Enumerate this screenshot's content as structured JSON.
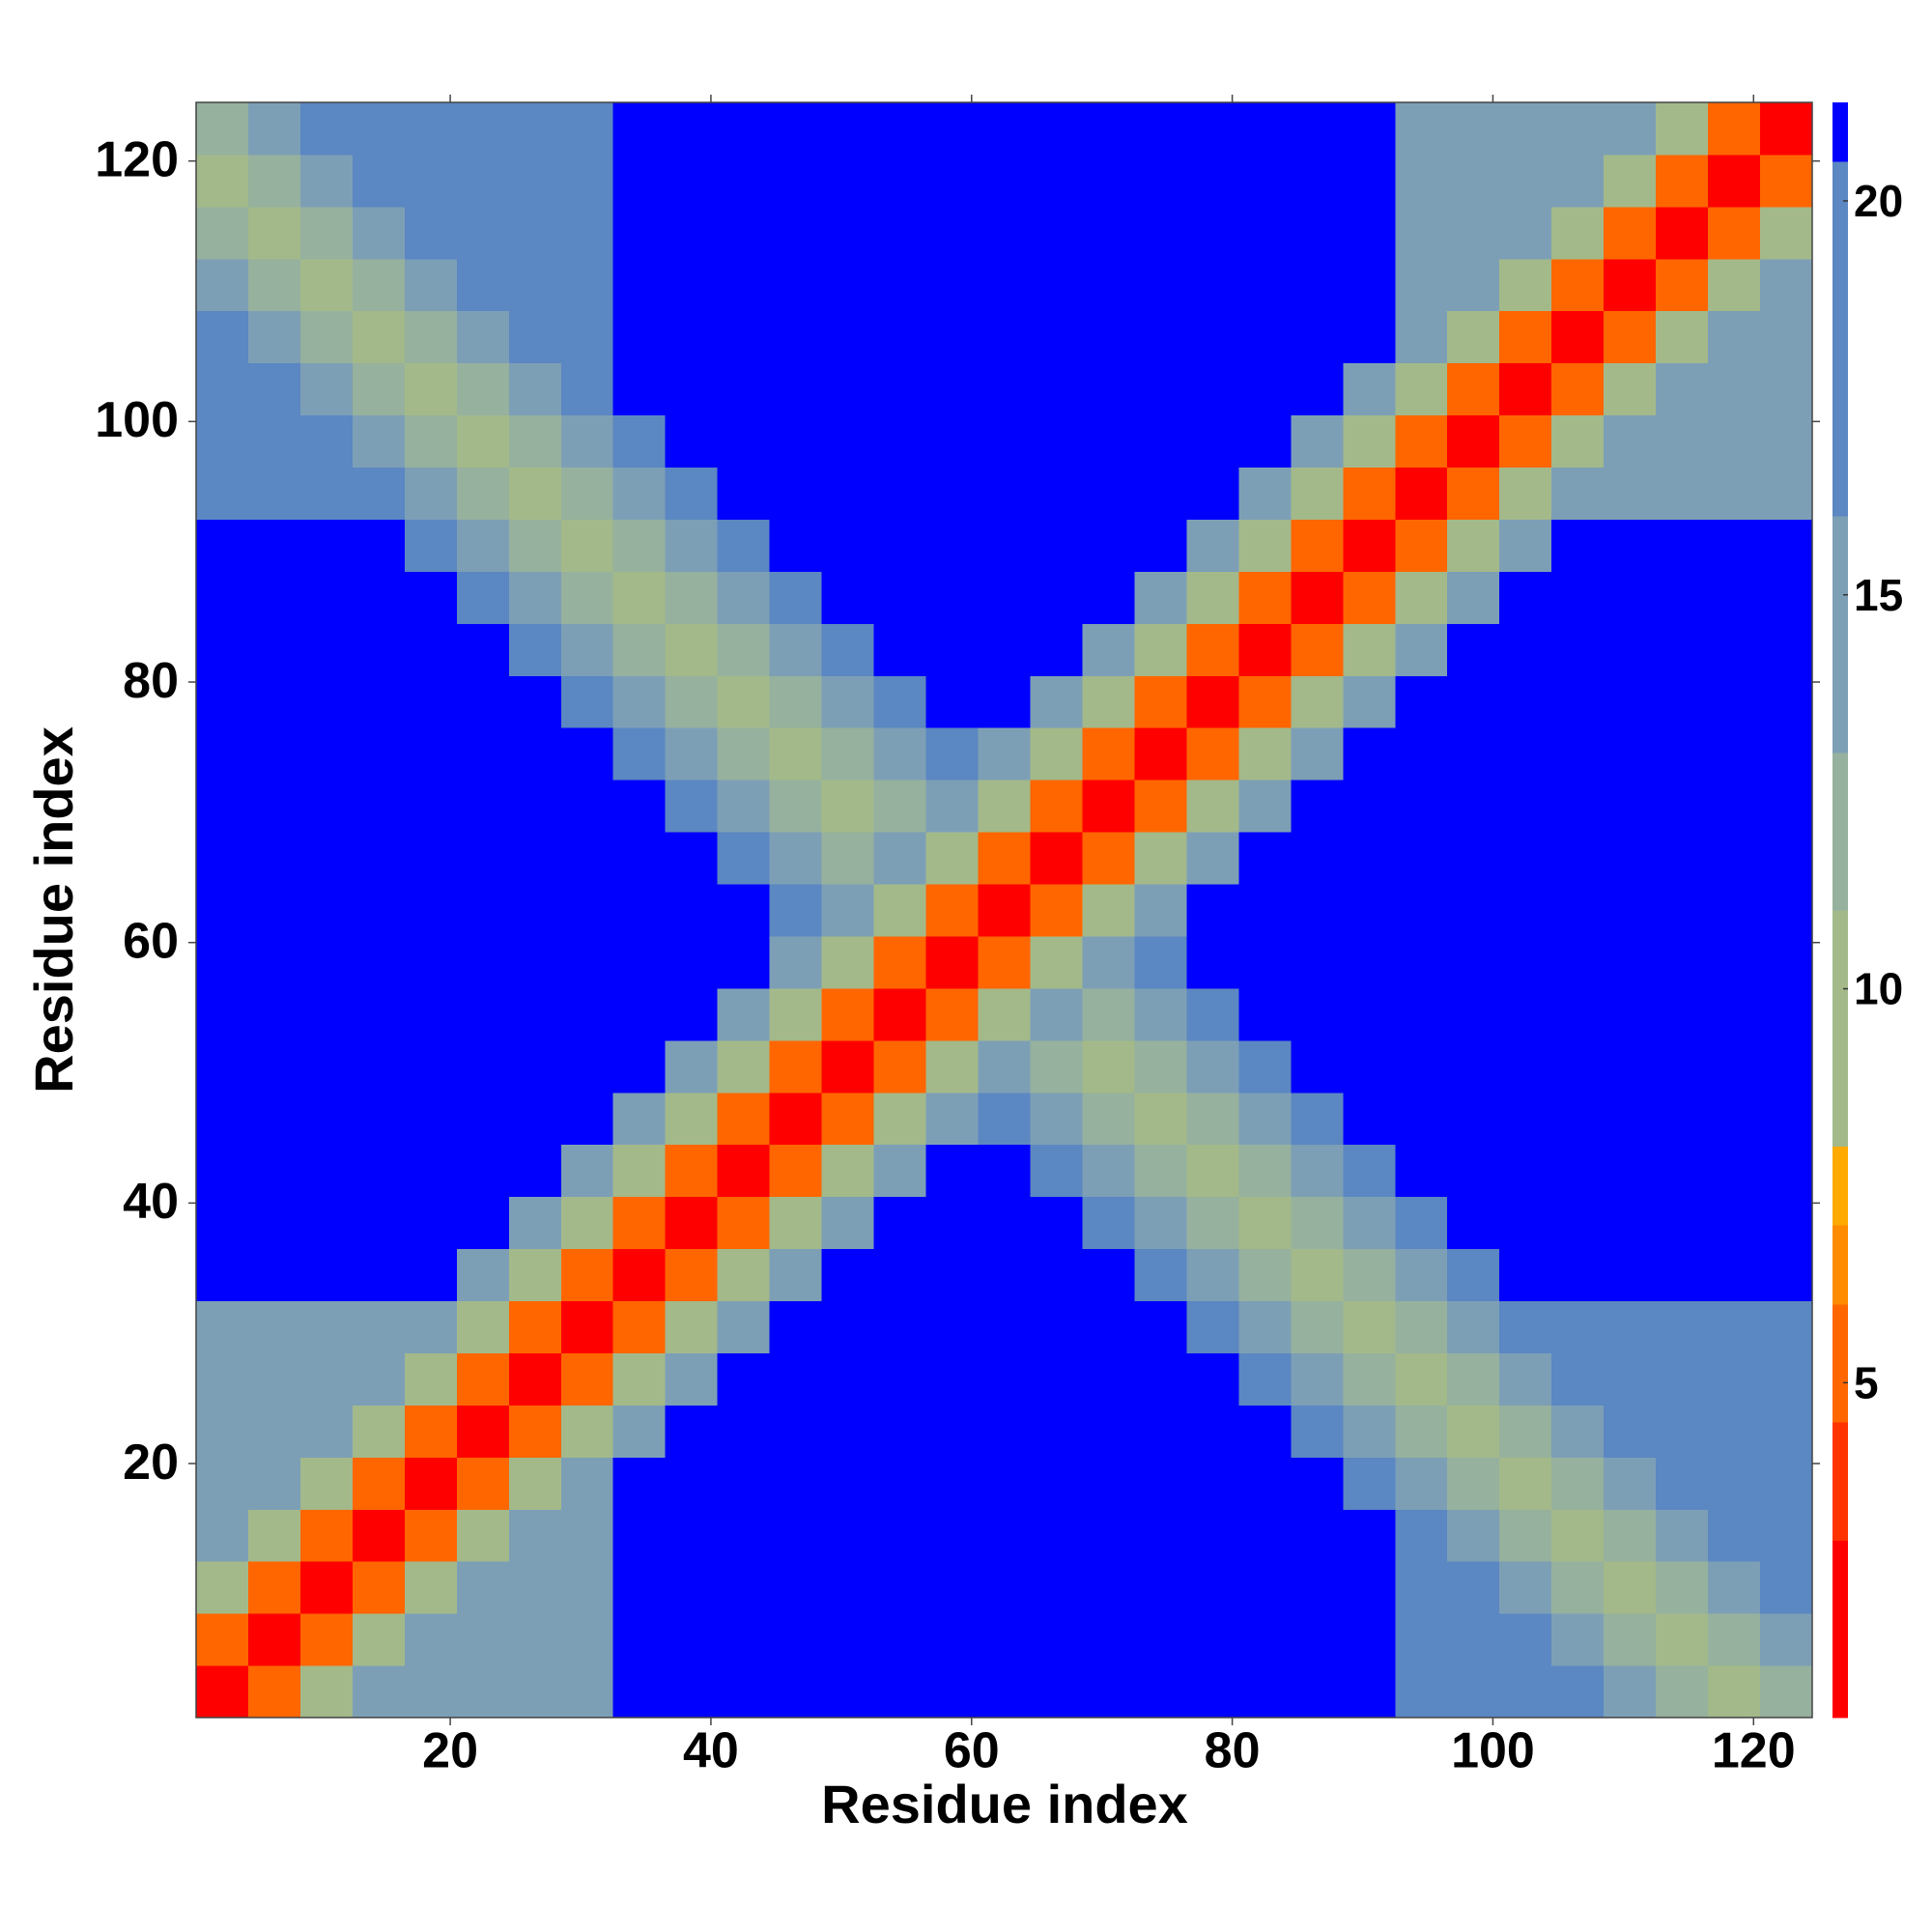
{
  "chart_data": {
    "type": "heatmap",
    "xlabel": "Residue index",
    "ylabel": "Residue index",
    "xbins": [
      0.5,
      4.5,
      8.5,
      12.5,
      16.5,
      20.5,
      24.5,
      28.5,
      32.5,
      36.5,
      40.5,
      44.5,
      48.5,
      52.5,
      56.5,
      60.5,
      64.5,
      68.5,
      72.5,
      76.5,
      80.5,
      84.5,
      88.5,
      92.5,
      96.5,
      100.5,
      104.5,
      108.5,
      112.5,
      116.5,
      120.5,
      124.5
    ],
    "ybins": [
      0.5,
      4.5,
      8.5,
      12.5,
      16.5,
      20.5,
      24.5,
      28.5,
      32.5,
      36.5,
      40.5,
      44.5,
      48.5,
      52.5,
      56.5,
      60.5,
      64.5,
      68.5,
      72.5,
      76.5,
      80.5,
      84.5,
      88.5,
      92.5,
      96.5,
      100.5,
      104.5,
      108.5,
      112.5,
      116.5,
      120.5,
      124.5
    ],
    "xlim": [
      0.5,
      124.5
    ],
    "ylim": [
      0.5,
      124.5
    ],
    "xticks": [
      20,
      40,
      60,
      80,
      100,
      120
    ],
    "yticks": [
      20,
      40,
      60,
      80,
      100,
      120
    ],
    "zlim": [
      0.75,
      21.25
    ],
    "zticks": [
      5,
      10,
      15,
      20
    ],
    "colorscale": [
      {
        "max": 3,
        "color": "#ff0000"
      },
      {
        "max": 4.5,
        "color": "#ff3300"
      },
      {
        "max": 6,
        "color": "#ff6600"
      },
      {
        "max": 7,
        "color": "#ff8c00"
      },
      {
        "max": 8,
        "color": "#ffaa00"
      },
      {
        "max": 11,
        "color": "#a3b98a"
      },
      {
        "max": 13,
        "color": "#96b19d"
      },
      {
        "max": 16,
        "color": "#7d9fb6"
      },
      {
        "max": 20.5,
        "color": "#5b87c2"
      },
      {
        "max": 21.25,
        "color": "#0000ff"
      }
    ],
    "values": [
      [
        2,
        6,
        10,
        14,
        15,
        15,
        15,
        15,
        21,
        21,
        21,
        21,
        21,
        21,
        21,
        21,
        21,
        21,
        21,
        21,
        21,
        21,
        21,
        17,
        17,
        17,
        17,
        15,
        13,
        11,
        13
      ],
      [
        6,
        2,
        6,
        10,
        14,
        15,
        15,
        15,
        21,
        21,
        21,
        21,
        21,
        21,
        21,
        21,
        21,
        21,
        21,
        21,
        21,
        21,
        21,
        17,
        17,
        17,
        15,
        13,
        11,
        13,
        15
      ],
      [
        10,
        6,
        2,
        6,
        10,
        14,
        15,
        15,
        21,
        21,
        21,
        21,
        21,
        21,
        21,
        21,
        21,
        21,
        21,
        21,
        21,
        21,
        21,
        17,
        17,
        15,
        13,
        11,
        13,
        15,
        17
      ],
      [
        14,
        10,
        6,
        2,
        6,
        10,
        14,
        15,
        21,
        21,
        21,
        21,
        21,
        21,
        21,
        21,
        21,
        21,
        21,
        21,
        21,
        21,
        21,
        17,
        15,
        13,
        11,
        13,
        15,
        17,
        17
      ],
      [
        15,
        14,
        10,
        6,
        2,
        6,
        10,
        14,
        21,
        21,
        21,
        21,
        21,
        21,
        21,
        21,
        21,
        21,
        21,
        21,
        21,
        21,
        17,
        15,
        13,
        11,
        13,
        15,
        17,
        17,
        17
      ],
      [
        15,
        15,
        14,
        10,
        6,
        2,
        6,
        10,
        14,
        21,
        21,
        21,
        21,
        21,
        21,
        21,
        21,
        21,
        21,
        21,
        21,
        17,
        15,
        13,
        11,
        13,
        15,
        17,
        17,
        17,
        17
      ],
      [
        15,
        15,
        15,
        14,
        10,
        6,
        2,
        6,
        10,
        14,
        21,
        21,
        21,
        21,
        21,
        21,
        21,
        21,
        21,
        21,
        17,
        15,
        13,
        11,
        13,
        15,
        17,
        17,
        17,
        17,
        17
      ],
      [
        15,
        15,
        15,
        15,
        14,
        10,
        6,
        2,
        6,
        10,
        14,
        21,
        21,
        21,
        21,
        21,
        21,
        21,
        21,
        17,
        15,
        13,
        11,
        13,
        15,
        17,
        17,
        17,
        17,
        17,
        17
      ],
      [
        21,
        21,
        21,
        21,
        21,
        14,
        10,
        6,
        2,
        6,
        10,
        14,
        21,
        21,
        21,
        21,
        21,
        21,
        17,
        15,
        13,
        11,
        13,
        15,
        17,
        21,
        21,
        21,
        21,
        21,
        21
      ],
      [
        21,
        21,
        21,
        21,
        21,
        21,
        14,
        10,
        6,
        2,
        6,
        10,
        14,
        21,
        21,
        21,
        21,
        17,
        15,
        13,
        11,
        13,
        15,
        17,
        21,
        21,
        21,
        21,
        21,
        21,
        21
      ],
      [
        21,
        21,
        21,
        21,
        21,
        21,
        21,
        14,
        10,
        6,
        2,
        6,
        10,
        14,
        21,
        21,
        17,
        15,
        13,
        11,
        13,
        15,
        17,
        21,
        21,
        21,
        21,
        21,
        21,
        21,
        21
      ],
      [
        21,
        21,
        21,
        21,
        21,
        21,
        21,
        21,
        14,
        10,
        6,
        2,
        6,
        10,
        14,
        17,
        15,
        13,
        11,
        13,
        15,
        17,
        21,
        21,
        21,
        21,
        21,
        21,
        21,
        21,
        21
      ],
      [
        21,
        21,
        21,
        21,
        21,
        21,
        21,
        21,
        21,
        14,
        10,
        6,
        2,
        6,
        10,
        14,
        13,
        11,
        13,
        15,
        17,
        21,
        21,
        21,
        21,
        21,
        21,
        21,
        21,
        21,
        21
      ],
      [
        21,
        21,
        21,
        21,
        21,
        21,
        21,
        21,
        21,
        21,
        14,
        10,
        6,
        2,
        6,
        10,
        14,
        13,
        15,
        17,
        21,
        21,
        21,
        21,
        21,
        21,
        21,
        21,
        21,
        21,
        21
      ],
      [
        21,
        21,
        21,
        21,
        21,
        21,
        21,
        21,
        21,
        21,
        21,
        14,
        10,
        6,
        2,
        6,
        10,
        14,
        17,
        21,
        21,
        21,
        21,
        21,
        21,
        21,
        21,
        21,
        21,
        21,
        21
      ],
      [
        21,
        21,
        21,
        21,
        21,
        21,
        21,
        21,
        21,
        21,
        21,
        17,
        14,
        10,
        6,
        2,
        6,
        10,
        14,
        21,
        21,
        21,
        21,
        21,
        21,
        21,
        21,
        21,
        21,
        21,
        21
      ],
      [
        21,
        21,
        21,
        21,
        21,
        21,
        21,
        21,
        21,
        21,
        17,
        15,
        13,
        14,
        10,
        6,
        2,
        6,
        10,
        14,
        21,
        21,
        21,
        21,
        21,
        21,
        21,
        21,
        21,
        21,
        21
      ],
      [
        21,
        21,
        21,
        21,
        21,
        21,
        21,
        21,
        21,
        17,
        15,
        13,
        11,
        13,
        14,
        10,
        6,
        2,
        6,
        10,
        14,
        21,
        21,
        21,
        21,
        21,
        21,
        21,
        21,
        21,
        21
      ],
      [
        21,
        21,
        21,
        21,
        21,
        21,
        21,
        21,
        17,
        15,
        13,
        11,
        13,
        15,
        17,
        14,
        10,
        6,
        2,
        6,
        10,
        14,
        21,
        21,
        21,
        21,
        21,
        21,
        21,
        21,
        21
      ],
      [
        21,
        21,
        21,
        21,
        21,
        21,
        21,
        17,
        15,
        13,
        11,
        13,
        15,
        17,
        21,
        21,
        14,
        10,
        6,
        2,
        6,
        10,
        14,
        21,
        21,
        21,
        21,
        21,
        21,
        21,
        21
      ],
      [
        21,
        21,
        21,
        21,
        21,
        21,
        17,
        15,
        13,
        11,
        13,
        15,
        17,
        21,
        21,
        21,
        21,
        14,
        10,
        6,
        2,
        6,
        10,
        14,
        21,
        21,
        21,
        21,
        21,
        21,
        21
      ],
      [
        21,
        21,
        21,
        21,
        21,
        17,
        15,
        13,
        11,
        13,
        15,
        17,
        21,
        21,
        21,
        21,
        21,
        21,
        14,
        10,
        6,
        2,
        6,
        10,
        14,
        21,
        21,
        21,
        21,
        21,
        21
      ],
      [
        21,
        21,
        21,
        21,
        17,
        15,
        13,
        11,
        13,
        15,
        17,
        21,
        21,
        21,
        21,
        21,
        21,
        21,
        21,
        14,
        10,
        6,
        2,
        6,
        10,
        14,
        21,
        21,
        21,
        21,
        21
      ],
      [
        17,
        17,
        17,
        17,
        15,
        13,
        11,
        13,
        15,
        17,
        21,
        21,
        21,
        21,
        21,
        21,
        21,
        21,
        21,
        21,
        14,
        10,
        6,
        2,
        6,
        10,
        14,
        15,
        15,
        15,
        15
      ],
      [
        17,
        17,
        17,
        15,
        13,
        11,
        13,
        15,
        17,
        21,
        21,
        21,
        21,
        21,
        21,
        21,
        21,
        21,
        21,
        21,
        21,
        14,
        10,
        6,
        2,
        6,
        10,
        14,
        15,
        15,
        15
      ],
      [
        17,
        17,
        15,
        13,
        11,
        13,
        15,
        17,
        21,
        21,
        21,
        21,
        21,
        21,
        21,
        21,
        21,
        21,
        21,
        21,
        21,
        21,
        14,
        10,
        6,
        2,
        6,
        10,
        14,
        15,
        15
      ],
      [
        17,
        15,
        13,
        11,
        13,
        15,
        17,
        17,
        21,
        21,
        21,
        21,
        21,
        21,
        21,
        21,
        21,
        21,
        21,
        21,
        21,
        21,
        21,
        14,
        10,
        6,
        2,
        6,
        10,
        14,
        15
      ],
      [
        15,
        13,
        11,
        13,
        15,
        17,
        17,
        17,
        21,
        21,
        21,
        21,
        21,
        21,
        21,
        21,
        21,
        21,
        21,
        21,
        21,
        21,
        21,
        15,
        14,
        10,
        6,
        2,
        6,
        10,
        14
      ],
      [
        13,
        11,
        13,
        15,
        17,
        17,
        17,
        17,
        21,
        21,
        21,
        21,
        21,
        21,
        21,
        21,
        21,
        21,
        21,
        21,
        21,
        21,
        21,
        15,
        15,
        14,
        10,
        6,
        2,
        6,
        10
      ],
      [
        11,
        13,
        15,
        17,
        17,
        17,
        17,
        17,
        21,
        21,
        21,
        21,
        21,
        21,
        21,
        21,
        21,
        21,
        21,
        21,
        21,
        21,
        21,
        15,
        15,
        15,
        14,
        10,
        6,
        2,
        6
      ],
      [
        13,
        15,
        17,
        17,
        17,
        17,
        17,
        17,
        21,
        21,
        21,
        21,
        21,
        21,
        21,
        21,
        21,
        21,
        21,
        21,
        21,
        21,
        21,
        15,
        15,
        15,
        15,
        14,
        10,
        6,
        2
      ]
    ]
  }
}
